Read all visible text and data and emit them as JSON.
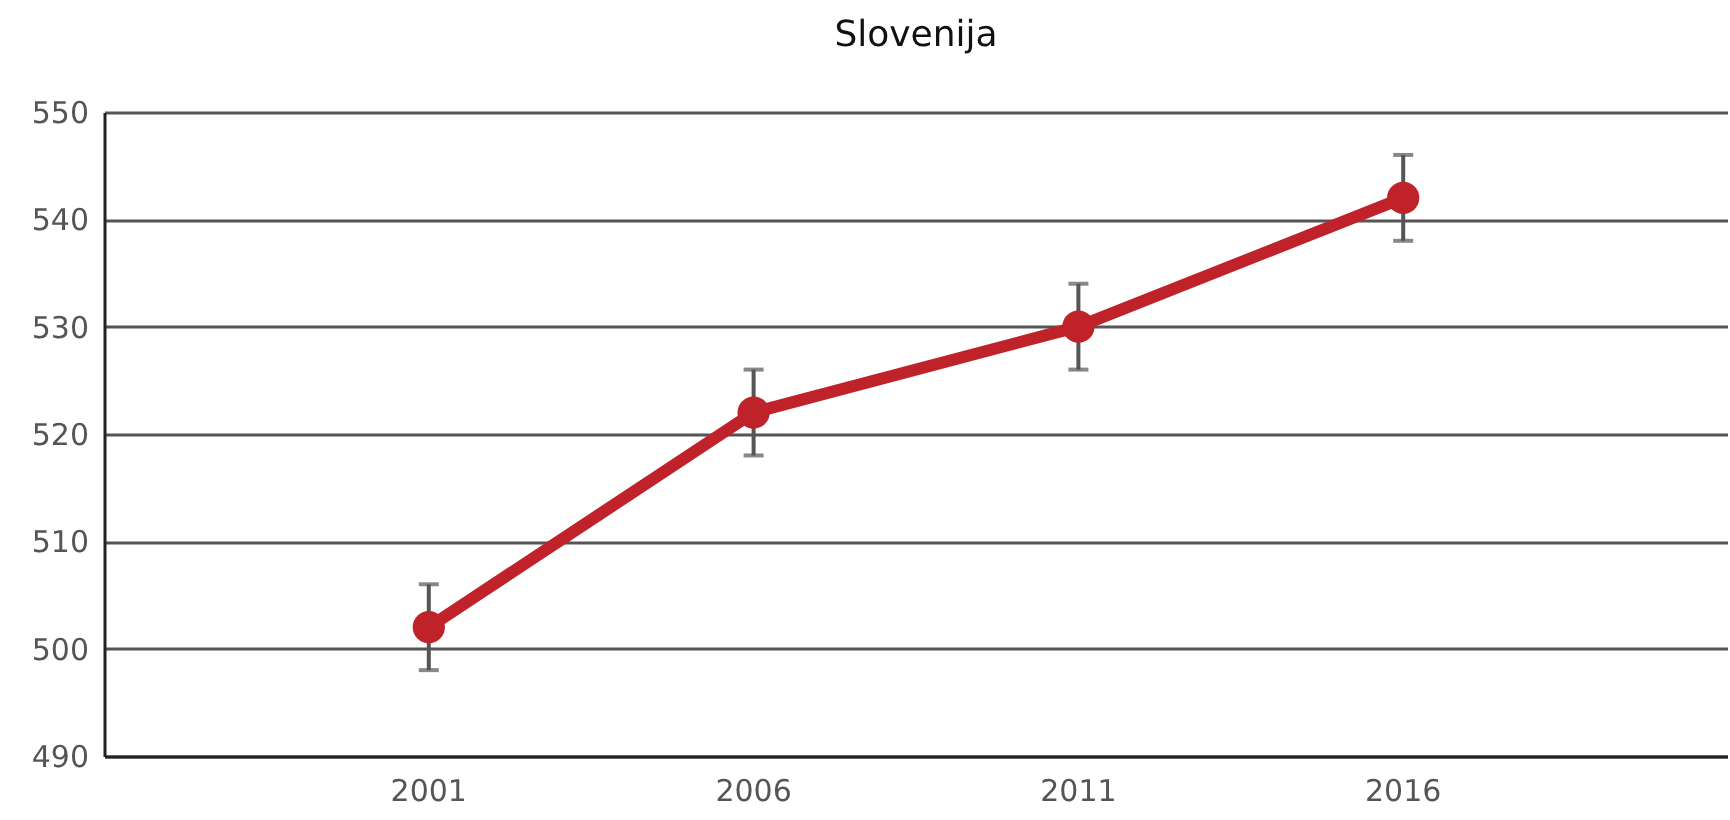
{
  "chart_data": {
    "type": "line",
    "title": "Slovenija",
    "categories": [
      "2001",
      "2006",
      "2011",
      "2016"
    ],
    "series": [
      {
        "color": "#c0222a",
        "values": [
          502,
          522,
          530,
          542
        ],
        "errors": [
          4,
          4,
          4,
          4
        ]
      }
    ],
    "ylim": [
      490,
      550
    ],
    "yticks": [
      490,
      500,
      510,
      520,
      530,
      540,
      550
    ],
    "grid": "y",
    "marker": "circle",
    "line_style": "solid"
  }
}
